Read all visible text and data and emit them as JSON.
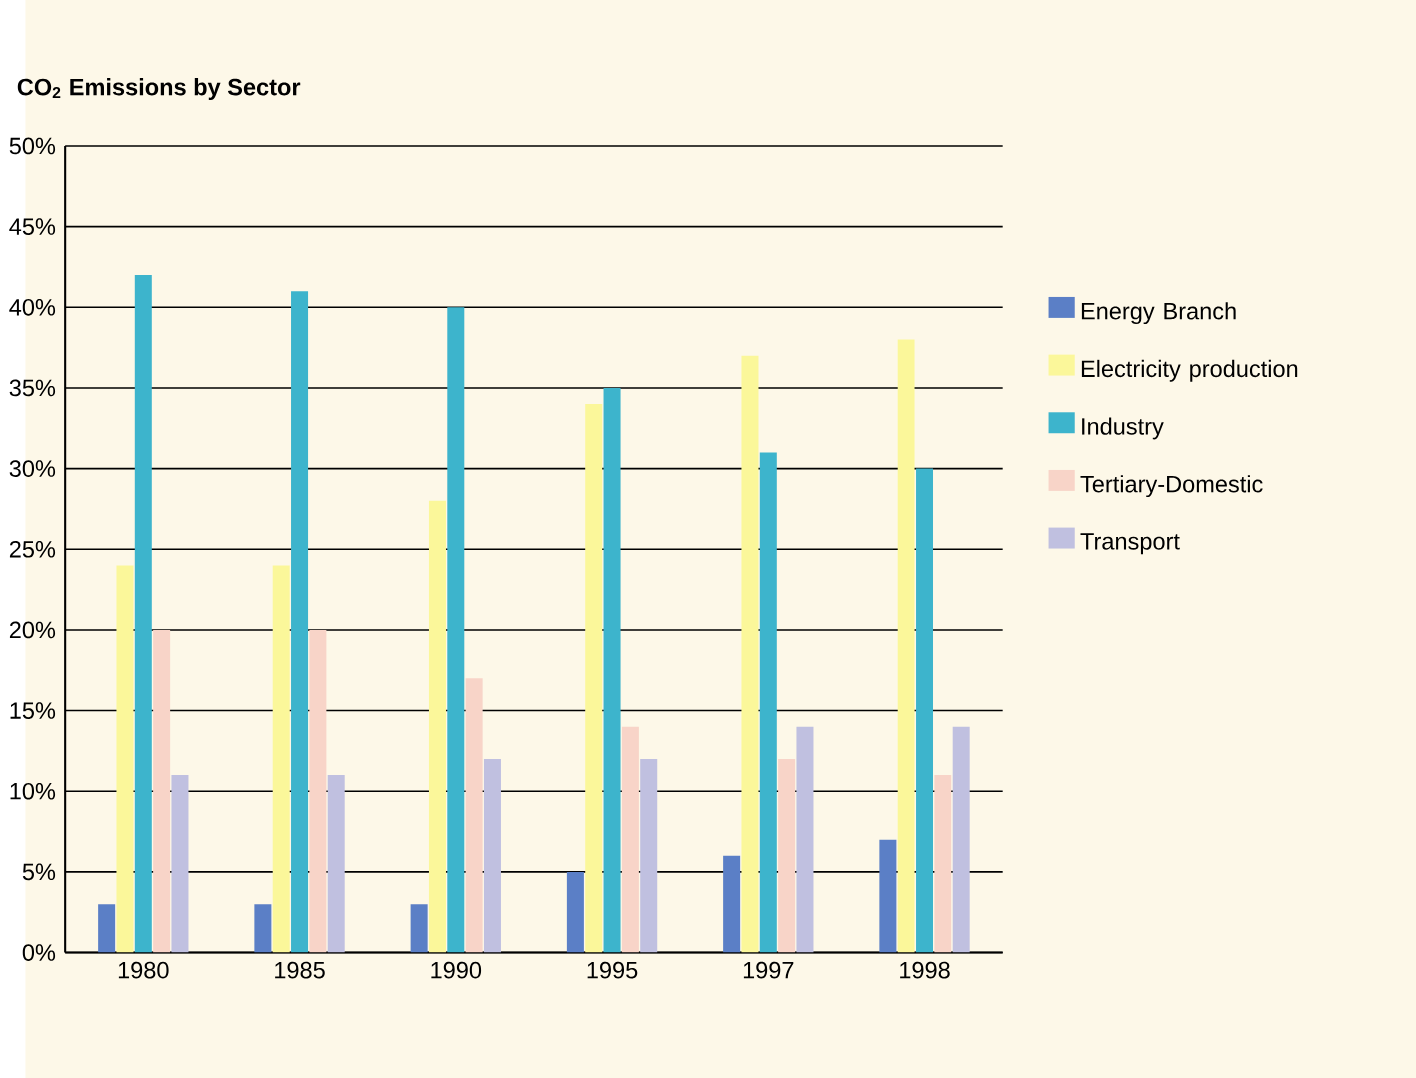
{
  "chart_data": {
    "type": "bar",
    "title": "CO$_{2}$ Emissions by Sector",
    "categories": [
      "1980",
      "1985",
      "1990",
      "1995",
      "1997",
      "1998"
    ],
    "series": [
      {
        "name": "Energy Branch",
        "color": "#5b7fc6",
        "values": [
          3,
          3,
          3,
          5,
          6,
          7
        ]
      },
      {
        "name": "Electricity production",
        "color": "#fbf79a",
        "values": [
          24,
          24,
          28,
          34,
          37,
          38
        ]
      },
      {
        "name": "Industry",
        "color": "#3db4cc",
        "values": [
          42,
          41,
          40,
          35,
          31,
          30
        ]
      },
      {
        "name": "Tertiary-Domestic",
        "color": "#f8d4c8",
        "values": [
          20,
          20,
          17,
          14,
          12,
          11
        ]
      },
      {
        "name": "Transport",
        "color": "#c0c0e0",
        "values": [
          11,
          11,
          12,
          12,
          14,
          14
        ]
      }
    ],
    "ylim": [
      0,
      50
    ],
    "yticks": [
      {
        "value": 0,
        "label": "0%"
      },
      {
        "value": 5,
        "label": "5%"
      },
      {
        "value": 10,
        "label": "10%"
      },
      {
        "value": 15,
        "label": "15%"
      },
      {
        "value": 20,
        "label": "20%"
      },
      {
        "value": 25,
        "label": "25%"
      },
      {
        "value": 30,
        "label": "30%"
      },
      {
        "value": 35,
        "label": "35%"
      },
      {
        "value": 40,
        "label": "40%"
      },
      {
        "value": 45,
        "label": "45%"
      },
      {
        "value": 50,
        "label": "50%"
      }
    ],
    "grid": "y",
    "legend": "right"
  }
}
